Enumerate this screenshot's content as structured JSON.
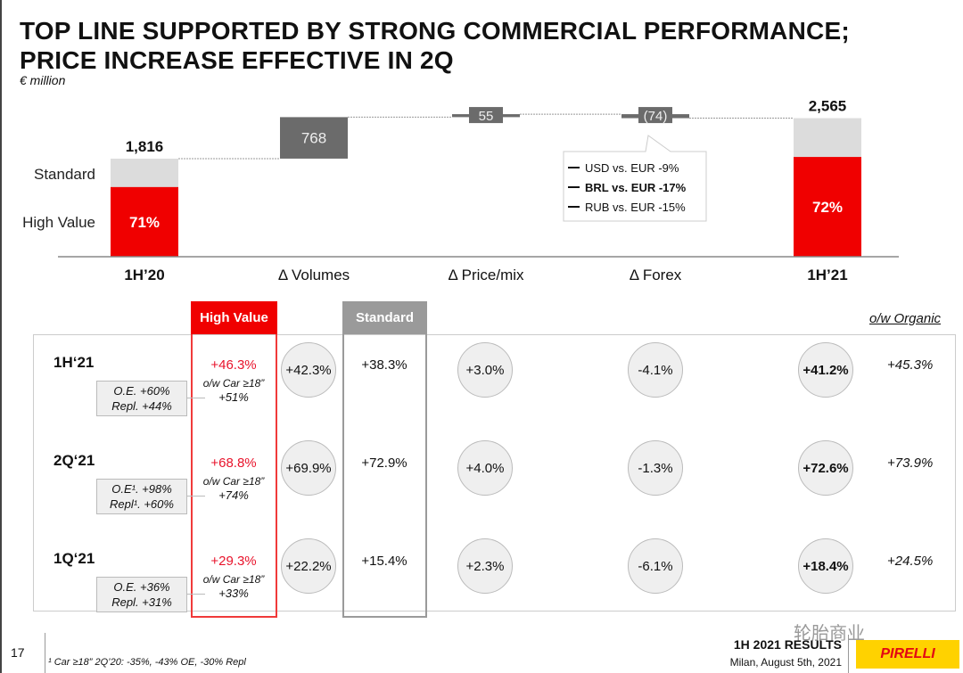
{
  "title_line1": "TOP LINE SUPPORTED BY STRONG COMMERCIAL PERFORMANCE;",
  "title_line2": "PRICE INCREASE EFFECTIVE IN 2Q",
  "unit": "€ million",
  "colors": {
    "red": "#f00000",
    "light_gray": "#dcdcdc",
    "dark_gray": "#6b6b6b",
    "accent_text_red": "#e8132b"
  },
  "chart_data": {
    "type": "waterfall",
    "categories": [
      "1H’20",
      "Δ Volumes",
      "Δ Price/mix",
      "Δ Forex",
      "1H’21"
    ],
    "values": [
      1816,
      768,
      55,
      -74,
      2565
    ],
    "value_labels": [
      "1,816",
      "768",
      "55",
      "(74)",
      "2,565"
    ],
    "kinds": [
      "total",
      "delta",
      "delta",
      "delta",
      "total"
    ],
    "high_value_share": [
      71,
      null,
      null,
      null,
      72
    ],
    "high_value_labels": [
      "71%",
      "",
      "",
      "",
      "72%"
    ],
    "legend": {
      "standard": "Standard",
      "high_value": "High Value"
    },
    "forex_callout": [
      "USD vs. EUR -9%",
      "BRL vs. EUR -17%",
      "RUB vs. EUR -15%"
    ]
  },
  "table": {
    "header_high_value": "High Value",
    "header_standard": "Standard",
    "header_organic": "o/w Organic",
    "rows": [
      {
        "label": "1H‘21",
        "sub1": "O.E. +60%",
        "sub2": "Repl. +44%",
        "hv": "+46.3%",
        "ow": "o/w Car ≥18”",
        "ow_val": "+51%",
        "vol": "+42.3%",
        "std": "+38.3%",
        "price": "+3.0%",
        "forex": "-4.1%",
        "total": "+41.2%",
        "organic": "+45.3%"
      },
      {
        "label": "2Q‘21",
        "sub1": "O.E¹. +98%",
        "sub2": "Repl¹.  +60%",
        "hv": "+68.8%",
        "ow": "o/w Car ≥18”",
        "ow_val": "+74%",
        "vol": "+69.9%",
        "std": "+72.9%",
        "price": "+4.0%",
        "forex": "-1.3%",
        "total": "+72.6%",
        "organic": "+73.9%"
      },
      {
        "label": "1Q‘21",
        "sub1": "O.E. +36%",
        "sub2": "Repl. +31%",
        "hv": "+29.3%",
        "ow": "o/w Car ≥18”",
        "ow_val": "+33%",
        "vol": "+22.2%",
        "std": "+15.4%",
        "price": "+2.3%",
        "forex": "-6.1%",
        "total": "+18.4%",
        "organic": "+24.5%"
      }
    ]
  },
  "footer": {
    "page": "17",
    "footnote": "¹ Car ≥18” 2Q’20: -35%, -43% OE, -30% Repl",
    "results": "1H 2021 RESULTS",
    "place_date": "Milan, August 5th, 2021",
    "logo": "PIRELLI",
    "watermark": "轮胎商业"
  }
}
